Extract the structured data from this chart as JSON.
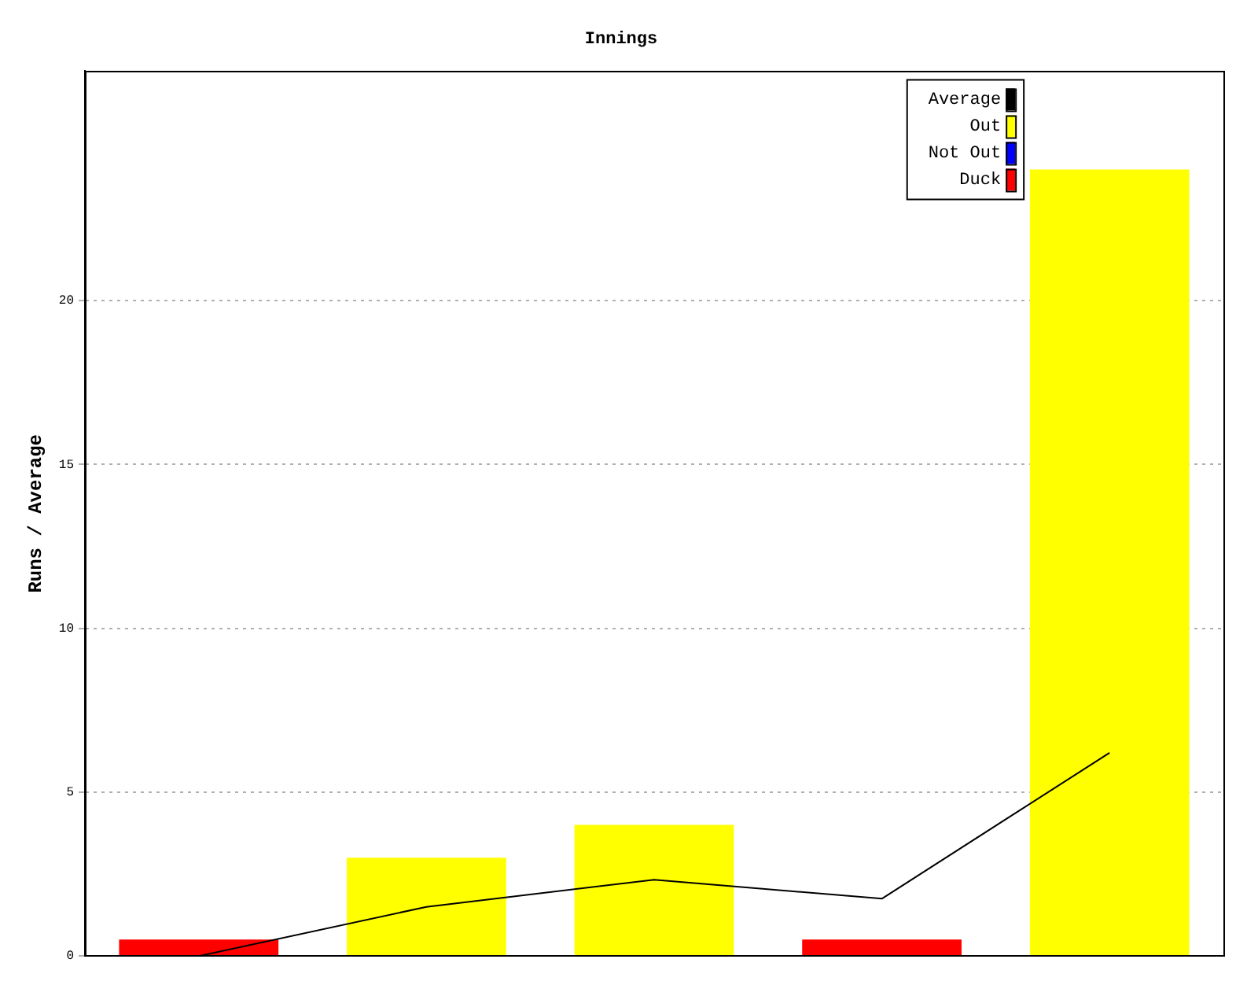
{
  "chart_data": {
    "type": "bar",
    "title": "Innings",
    "ylabel": "Runs / Average",
    "categories": [
      null,
      null,
      null,
      null,
      null
    ],
    "series": [
      {
        "name": "Average",
        "type": "line",
        "color": "#000000",
        "values": [
          0,
          1.5,
          2.33,
          1.75,
          6.2
        ]
      },
      {
        "name": "Out",
        "color": "#ffff00",
        "values": [
          null,
          3,
          4,
          null,
          24
        ]
      },
      {
        "name": "Not Out",
        "color": "#0000ff",
        "values": [
          null,
          null,
          null,
          null,
          null
        ]
      },
      {
        "name": "Duck",
        "color": "#ff0000",
        "values": [
          0.5,
          null,
          null,
          0.5,
          null
        ]
      }
    ],
    "stacked": true,
    "ylim": [
      0,
      27
    ],
    "yticks": [
      0,
      5,
      10,
      15,
      20
    ],
    "grid": "y",
    "legend": "top right",
    "marker": "none"
  }
}
